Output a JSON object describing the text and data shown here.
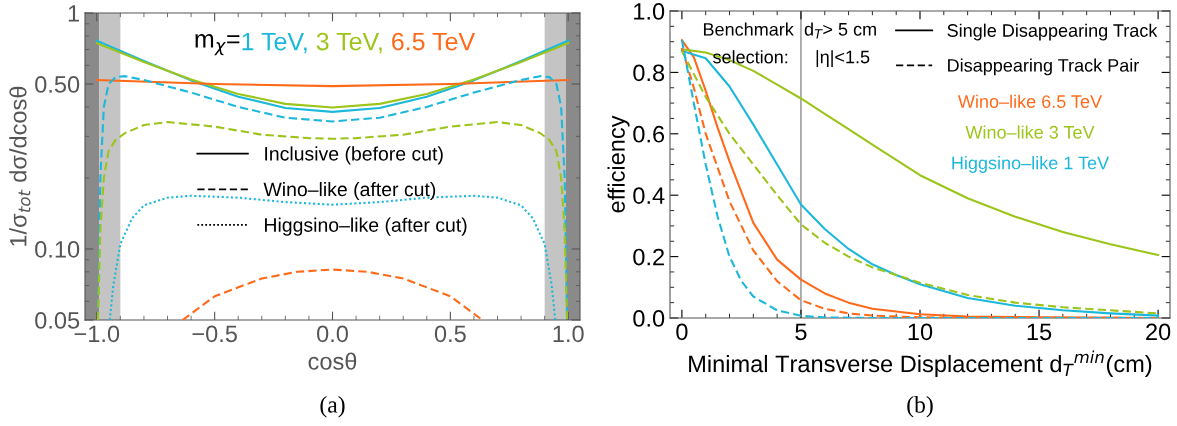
{
  "chart_data": [
    {
      "type": "line",
      "title": "(a)",
      "xlabel": "cosθ",
      "ylabel": "1/σ$_{tot}$ dσ/dcosθ",
      "log": "y",
      "xlim": [
        -1.05,
        1.05
      ],
      "ylim": [
        0.05,
        1
      ],
      "xticks": [
        {
          "value": -1,
          "label": "−1.0"
        },
        {
          "value": -0.5,
          "label": "−0.5"
        },
        {
          "value": 0,
          "label": "0.0"
        },
        {
          "value": 0.5,
          "label": "0.5"
        },
        {
          "value": 1,
          "label": "1.0"
        }
      ],
      "yticks": [
        0.05,
        {
          "value": 0.1,
          "label": "0.10"
        },
        {
          "value": 0.5,
          "label": "0.50"
        },
        1
      ],
      "grid": false,
      "legend": "center",
      "annotations": [
        "m$_{χ}$="
      ],
      "bands": [
        {
          "axis": "x",
          "from": -1.05,
          "to": -0.99,
          "color": "#8a8a8a"
        },
        {
          "axis": "x",
          "from": -0.99,
          "to": -0.9,
          "color": "#c4c4c4"
        },
        {
          "axis": "x",
          "from": 0.9,
          "to": 0.99,
          "color": "#c4c4c4"
        },
        {
          "axis": "x",
          "from": 0.99,
          "to": 1.05,
          "color": "#8a8a8a"
        }
      ],
      "series": [
        {
          "name": "1 TeV,",
          "color": "#1cb8dc",
          "line_style": "solid",
          "x": [
            -1,
            -0.8,
            -0.6,
            -0.4,
            -0.2,
            0,
            0.2,
            0.4,
            0.6,
            0.8,
            1
          ],
          "values": [
            0.764,
            0.626,
            0.518,
            0.442,
            0.396,
            0.381,
            0.396,
            0.442,
            0.518,
            0.626,
            0.764
          ]
        },
        {
          "name": "3 TeV,",
          "color": "#9cc41a",
          "line_style": "solid",
          "x": [
            -1,
            -0.8,
            -0.6,
            -0.4,
            -0.2,
            0,
            0.2,
            0.4,
            0.6,
            0.8,
            1
          ],
          "values": [
            0.745,
            0.62,
            0.523,
            0.454,
            0.412,
            0.398,
            0.412,
            0.454,
            0.523,
            0.62,
            0.745
          ]
        },
        {
          "name": "6.5 TeV",
          "color": "#ff6a1a",
          "line_style": "solid",
          "x": [
            -1,
            -0.5,
            0,
            0.5,
            1
          ],
          "values": [
            0.52,
            0.5,
            0.49,
            0.5,
            0.52
          ]
        },
        {
          "color": "#1cb8dc",
          "line_style": "dashed",
          "x": [
            -0.995,
            -0.985,
            -0.97,
            -0.95,
            -0.92,
            -0.88,
            -0.8,
            -0.6,
            -0.4,
            -0.2,
            0,
            0.2,
            0.4,
            0.6,
            0.8,
            0.88,
            0.92,
            0.95,
            0.97,
            0.985,
            0.995
          ],
          "values": [
            0.05,
            0.2,
            0.4,
            0.5,
            0.535,
            0.54,
            0.52,
            0.46,
            0.4,
            0.36,
            0.347,
            0.36,
            0.4,
            0.46,
            0.52,
            0.54,
            0.535,
            0.5,
            0.4,
            0.2,
            0.05
          ]
        },
        {
          "color": "#9cc41a",
          "line_style": "dashed",
          "x": [
            -0.995,
            -0.985,
            -0.97,
            -0.95,
            -0.92,
            -0.88,
            -0.8,
            -0.7,
            -0.5,
            -0.3,
            -0.1,
            0,
            0.1,
            0.3,
            0.5,
            0.7,
            0.8,
            0.88,
            0.92,
            0.95,
            0.97,
            0.985,
            0.995
          ],
          "values": [
            0.05,
            0.12,
            0.2,
            0.26,
            0.29,
            0.31,
            0.335,
            0.345,
            0.33,
            0.305,
            0.295,
            0.293,
            0.295,
            0.305,
            0.33,
            0.345,
            0.335,
            0.31,
            0.29,
            0.26,
            0.2,
            0.12,
            0.05
          ]
        },
        {
          "color": "#1cb8dc",
          "line_style": "dotted",
          "x": [
            -0.945,
            -0.93,
            -0.9,
            -0.85,
            -0.8,
            -0.7,
            -0.6,
            -0.4,
            -0.2,
            0,
            0.2,
            0.4,
            0.6,
            0.7,
            0.8,
            0.85,
            0.9,
            0.93,
            0.945
          ],
          "values": [
            0.05,
            0.07,
            0.105,
            0.135,
            0.153,
            0.165,
            0.168,
            0.165,
            0.158,
            0.154,
            0.158,
            0.165,
            0.168,
            0.165,
            0.153,
            0.135,
            0.105,
            0.07,
            0.05
          ]
        },
        {
          "color": "#ff6a1a",
          "line_style": "dashed",
          "x": [
            -0.636,
            -0.5,
            -0.3,
            -0.15,
            0,
            0.15,
            0.3,
            0.5,
            0.636
          ],
          "values": [
            0.05,
            0.063,
            0.075,
            0.08,
            0.0818,
            0.08,
            0.075,
            0.063,
            0.05
          ]
        },
        {
          "name": "Inclusive (before cut)",
          "color": "#000000",
          "line_style": "solid"
        },
        {
          "name": "Wino–like (after cut)",
          "color": "#000000",
          "line_style": "dashed"
        },
        {
          "name": "Higgsino–like (after cut)",
          "color": "#000000",
          "line_style": "dotted"
        }
      ]
    },
    {
      "type": "line",
      "title": "(b)",
      "xlabel": "Minimal Transverse Displacement d$_{T}$$^{min}$(cm)",
      "ylabel": "efficiency",
      "xlim": [
        -0.5,
        20.5
      ],
      "ylim": [
        0,
        1
      ],
      "xticks": [
        0,
        5,
        10,
        15,
        20
      ],
      "yticks": [
        {
          "value": 0,
          "label": "0.0"
        },
        0.2,
        0.4,
        0.6,
        0.8,
        {
          "value": 1,
          "label": "1.0"
        }
      ],
      "grid": false,
      "legend": "top right",
      "annotations": [
        "Benchmark",
        "selection:",
        "d$_{T}$> 5 cm",
        "|η|<1.5"
      ],
      "ref_lines": [
        {
          "axis": "x",
          "value": 5,
          "color": "#8c8c8c"
        }
      ],
      "series": [
        {
          "name": "Wino–like 6.5 TeV",
          "color": "#ff6a1a",
          "line_style": "solid",
          "x": [
            0,
            0.5,
            1,
            1.5,
            2,
            3,
            4,
            5,
            6,
            7,
            8,
            10,
            12,
            15,
            20
          ],
          "values": [
            0.905,
            0.85,
            0.74,
            0.62,
            0.51,
            0.31,
            0.19,
            0.125,
            0.08,
            0.05,
            0.03,
            0.012,
            0.005,
            0.002,
            0
          ]
        },
        {
          "name": "Wino–like 3 TeV",
          "color": "#9cc41a",
          "line_style": "solid",
          "x": [
            0,
            1,
            2,
            3,
            4,
            5,
            6,
            7,
            8,
            9,
            10,
            12,
            14,
            16,
            18,
            20
          ],
          "values": [
            0.875,
            0.865,
            0.84,
            0.805,
            0.76,
            0.715,
            0.665,
            0.615,
            0.565,
            0.515,
            0.465,
            0.39,
            0.33,
            0.28,
            0.24,
            0.205
          ]
        },
        {
          "name": "Higgsino–like 1 TeV",
          "color": "#1cb8dc",
          "line_style": "solid",
          "x": [
            0,
            1,
            2,
            3,
            4,
            5,
            6,
            7,
            8,
            9,
            10,
            12,
            14,
            16,
            18,
            20
          ],
          "values": [
            0.87,
            0.846,
            0.754,
            0.63,
            0.5,
            0.37,
            0.29,
            0.225,
            0.175,
            0.14,
            0.11,
            0.065,
            0.04,
            0.025,
            0.015,
            0.008
          ]
        },
        {
          "color": "#ff6a1a",
          "line_style": "dashed",
          "x": [
            0,
            0.5,
            1,
            2,
            3,
            4,
            5,
            6,
            7,
            8,
            10,
            20
          ],
          "values": [
            0.88,
            0.75,
            0.6,
            0.38,
            0.22,
            0.12,
            0.058,
            0.03,
            0.015,
            0.008,
            0.002,
            0
          ]
        },
        {
          "color": "#9cc41a",
          "line_style": "dashed",
          "x": [
            0,
            1,
            2,
            3,
            4,
            5,
            6,
            7,
            8,
            10,
            12,
            14,
            16,
            18,
            20
          ],
          "values": [
            0.87,
            0.72,
            0.6,
            0.5,
            0.4,
            0.305,
            0.245,
            0.2,
            0.165,
            0.115,
            0.075,
            0.05,
            0.035,
            0.025,
            0.015
          ]
        },
        {
          "color": "#1cb8dc",
          "line_style": "dashed",
          "x": [
            0,
            0.5,
            1,
            1.5,
            2,
            2.5,
            3,
            4,
            5,
            6,
            8,
            20
          ],
          "values": [
            0.905,
            0.7,
            0.5,
            0.33,
            0.2,
            0.12,
            0.07,
            0.025,
            0.007,
            0.002,
            0,
            0
          ]
        },
        {
          "name": "Single Disappearing Track",
          "color": "#000000",
          "line_style": "solid"
        },
        {
          "name": "Disappearing Track Pair",
          "color": "#000000",
          "line_style": "dashed"
        }
      ]
    }
  ]
}
